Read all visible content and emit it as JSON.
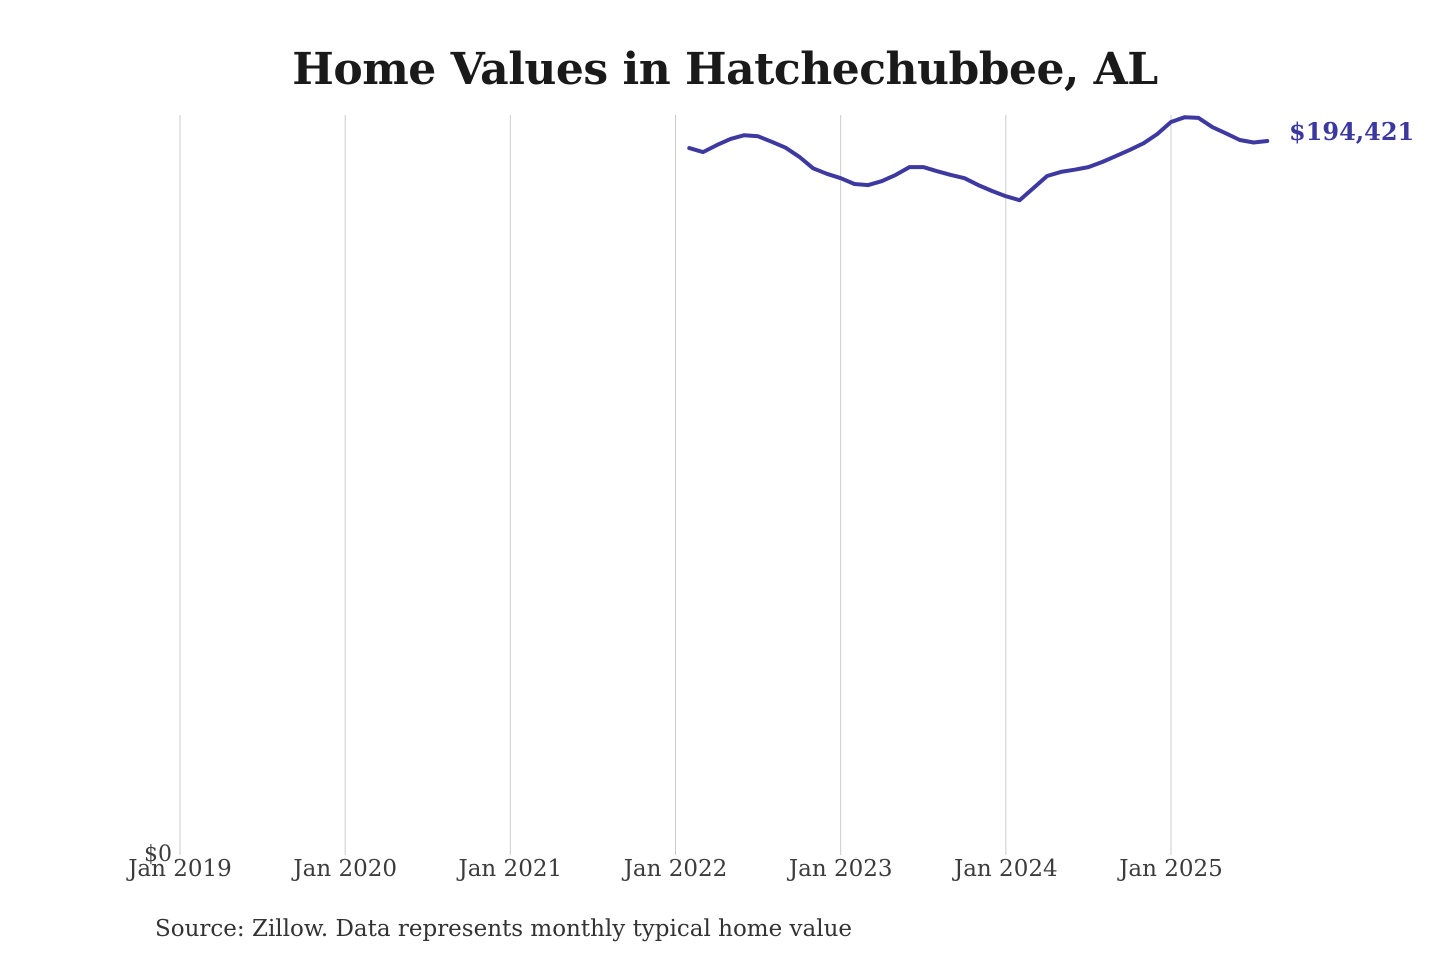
{
  "title": {
    "text": "Home Values in Hatchechubbee, AL"
  },
  "end_label": {
    "text": "$194,421"
  },
  "y_axis": {
    "zero_label": "$0"
  },
  "source_note": {
    "text": "Source: Zillow. Data represents monthly typical home value"
  },
  "colors": {
    "background": "#ffffff",
    "line": "#3d39a1",
    "end_label": "#3b38a0",
    "gridline": "#cbcbcb",
    "title": "#1a1a1a",
    "axis_label": "#3c3c3c",
    "source": "#333333"
  },
  "chart_data": {
    "type": "line",
    "title": "Home Values in Hatchechubbee, AL",
    "xlabel": "",
    "ylabel": "",
    "ylim": [
      0,
      201500
    ],
    "x_range": [
      "Jan 2019",
      "Aug 2025"
    ],
    "grid": "vertical-year-gridlines-only",
    "legend": "none",
    "x_tick_labels": [
      "Jan 2019",
      "Jan 2020",
      "Jan 2021",
      "Jan 2022",
      "Jan 2023",
      "Jan 2024",
      "Jan 2025"
    ],
    "y_tick_labels": [
      "$0"
    ],
    "last_value": 194421,
    "last_value_label": "$194,421",
    "series": [
      {
        "name": "Monthly typical home value",
        "color": "#3d39a1",
        "dates": [
          "Feb 2022",
          "Mar 2022",
          "Apr 2022",
          "May 2022",
          "Jun 2022",
          "Jul 2022",
          "Aug 2022",
          "Sep 2022",
          "Oct 2022",
          "Nov 2022",
          "Dec 2022",
          "Jan 2023",
          "Feb 2023",
          "Mar 2023",
          "Apr 2023",
          "May 2023",
          "Jun 2023",
          "Jul 2023",
          "Aug 2023",
          "Sep 2023",
          "Oct 2023",
          "Nov 2023",
          "Dec 2023",
          "Jan 2024",
          "Feb 2024",
          "Mar 2024",
          "Apr 2024",
          "May 2024",
          "Jun 2024",
          "Jul 2024",
          "Aug 2024",
          "Sep 2024",
          "Oct 2024",
          "Nov 2024",
          "Dec 2024",
          "Jan 2025",
          "Feb 2025",
          "Mar 2025",
          "Apr 2025",
          "May 2025",
          "Jun 2025",
          "Jul 2025",
          "Aug 2025"
        ],
        "values": [
          192500,
          191400,
          193300,
          195000,
          196000,
          195700,
          194200,
          192600,
          190100,
          187000,
          185500,
          184300,
          182700,
          182400,
          183500,
          185200,
          187300,
          187300,
          186200,
          185200,
          184300,
          182400,
          180800,
          179400,
          178300,
          181600,
          184900,
          186000,
          186600,
          187300,
          188700,
          190300,
          192000,
          193800,
          196300,
          199600,
          200900,
          200700,
          198200,
          196500,
          194700,
          194000,
          194421
        ]
      }
    ]
  }
}
